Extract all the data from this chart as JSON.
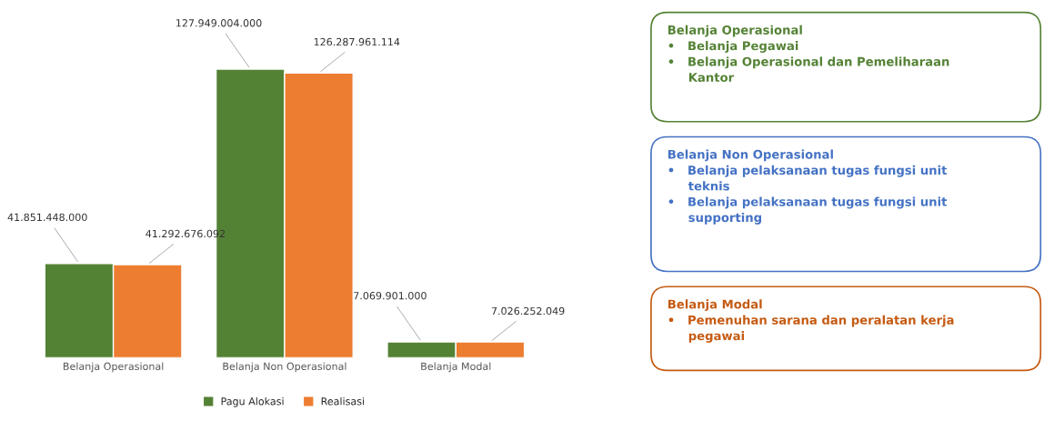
{
  "chart_data": [
    {
      "type": "bar",
      "categories": [
        "Belanja Operasional",
        "Belanja Non Operasional",
        "Belanja Modal"
      ],
      "legend": "bottom",
      "series": [
        {
          "name": "Pagu Alokasi",
          "color": "#548235",
          "values": [
            41851448000,
            127949004000,
            7069901000
          ],
          "value_labels": [
            "41.851.448.000",
            "127.949.004.000",
            "7.069.901.000"
          ]
        },
        {
          "name": "Realisasi",
          "color": "#ed7d31",
          "values": [
            41292676092,
            126287961114,
            7026252049
          ],
          "value_labels": [
            "41.292.676.092",
            "126.287.961.114",
            "7.026.252.049"
          ]
        }
      ]
    },
    {
      "type": "other",
      "colors": [
        "#548235",
        "#4472c4",
        "#c55a11"
      ],
      "annotations": [
        "Belanja Operasional\n•   Belanja Pegawai\n•   Belanja Operasional dan Pemeliharaan\n     Kantor",
        "Belanja Non Operasional\n•   Belanja pelaksanaan tugas fungsi unit\n     teknis\n•   Belanja pelaksanaan tugas fungsi unit\n     supporting",
        "Belanja Modal\n•   Pemenuhan sarana dan peralatan kerja\n     pegawai"
      ]
    }
  ]
}
